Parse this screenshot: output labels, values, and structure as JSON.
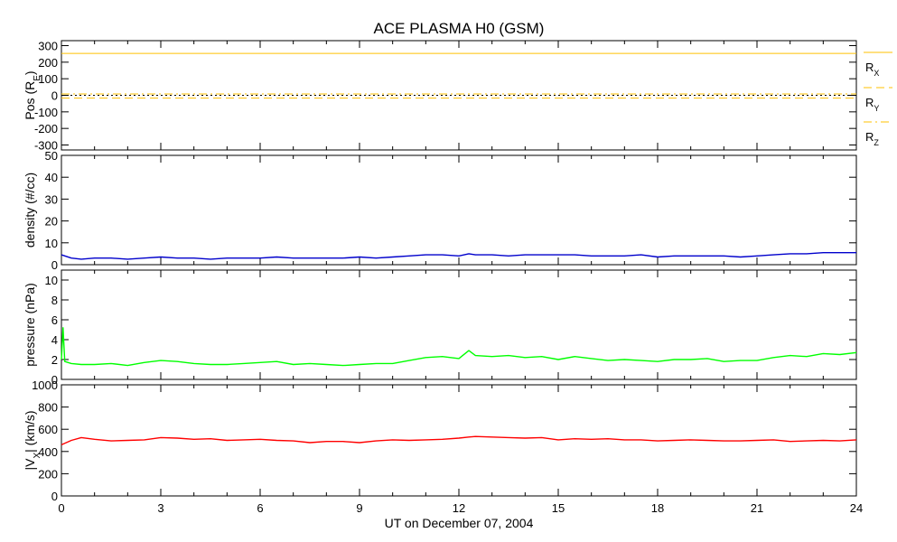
{
  "title": "ACE PLASMA H0 (GSM)",
  "xlabel": "UT on December 07, 2004",
  "x_ticks": [
    "0",
    "3",
    "6",
    "9",
    "12",
    "15",
    "18",
    "21",
    "24"
  ],
  "chart_data": [
    {
      "type": "line",
      "ylabel": "Pos (R_E)",
      "ylim": [
        -330,
        330
      ],
      "y_ticks": [
        300,
        200,
        100,
        0,
        -100,
        -200,
        -300
      ],
      "xlim": [
        0,
        24
      ],
      "grid": false,
      "legend_position": "right",
      "series": [
        {
          "name": "R_X",
          "color": "#ffc000",
          "dash": "solid",
          "x": [
            0,
            24
          ],
          "y": [
            253,
            253
          ]
        },
        {
          "name": "R_Y",
          "color": "#ffc000",
          "dash": "dashed",
          "x": [
            0,
            24
          ],
          "y": [
            -17,
            -17
          ]
        },
        {
          "name": "R_Z",
          "color": "#ffc000",
          "dash": "dashdot",
          "x": [
            0,
            24
          ],
          "y": [
            8,
            8
          ]
        }
      ],
      "zero_line": {
        "y": 0,
        "color": "#000000",
        "dash": "dotted"
      }
    },
    {
      "type": "line",
      "ylabel": "density (#/cc)",
      "ylim": [
        0,
        50
      ],
      "y_ticks": [
        50,
        40,
        30,
        20,
        10,
        0
      ],
      "xlim": [
        0,
        24
      ],
      "series": [
        {
          "name": "",
          "color": "#0000cc",
          "x": [
            0,
            0.3,
            0.6,
            1,
            1.5,
            2,
            2.5,
            3,
            3.5,
            4,
            4.5,
            5,
            5.5,
            6,
            6.5,
            7,
            7.5,
            8,
            8.5,
            9,
            9.5,
            10,
            10.5,
            11,
            11.5,
            12,
            12.3,
            12.5,
            13,
            13.5,
            14,
            14.5,
            15,
            15.5,
            16,
            16.5,
            17,
            17.5,
            18,
            18.5,
            19,
            19.5,
            20,
            20.5,
            21,
            21.5,
            22,
            22.5,
            23,
            23.5,
            24
          ],
          "y": [
            4.5,
            3.0,
            2.5,
            3.0,
            3.0,
            2.5,
            3.0,
            3.5,
            3.0,
            3.0,
            2.5,
            3.0,
            3.0,
            3.0,
            3.5,
            3.0,
            3.0,
            3.0,
            3.0,
            3.5,
            3.0,
            3.5,
            4.0,
            4.5,
            4.5,
            4.0,
            5.0,
            4.5,
            4.5,
            4.0,
            4.5,
            4.5,
            4.5,
            4.5,
            4.0,
            4.0,
            4.0,
            4.5,
            3.5,
            4.0,
            4.0,
            4.0,
            4.0,
            3.5,
            4.0,
            4.5,
            5.0,
            5.0,
            5.5,
            5.5,
            5.5
          ]
        }
      ]
    },
    {
      "type": "line",
      "ylabel": "pressure (nPa)",
      "ylim": [
        0,
        11
      ],
      "y_ticks": [
        10,
        8,
        6,
        4,
        2,
        0
      ],
      "xlim": [
        0,
        24
      ],
      "series": [
        {
          "name": "",
          "color": "#00ff00",
          "x": [
            0,
            0.05,
            0.1,
            0.3,
            0.6,
            1,
            1.5,
            2,
            2.5,
            3,
            3.5,
            4,
            4.5,
            5,
            5.5,
            6,
            6.5,
            7,
            7.5,
            8,
            8.5,
            9,
            9.5,
            10,
            10.5,
            11,
            11.5,
            12,
            12.3,
            12.5,
            13,
            13.5,
            14,
            14.5,
            15,
            15.5,
            16,
            16.5,
            17,
            17.5,
            18,
            18.5,
            19,
            19.5,
            20,
            20.5,
            21,
            21.5,
            22,
            22.5,
            23,
            23.5,
            24
          ],
          "y": [
            2.0,
            5.2,
            1.8,
            1.6,
            1.5,
            1.5,
            1.6,
            1.4,
            1.7,
            1.9,
            1.8,
            1.6,
            1.5,
            1.5,
            1.6,
            1.7,
            1.8,
            1.5,
            1.6,
            1.5,
            1.4,
            1.5,
            1.6,
            1.6,
            1.9,
            2.2,
            2.3,
            2.1,
            2.9,
            2.4,
            2.3,
            2.4,
            2.2,
            2.3,
            2.0,
            2.3,
            2.1,
            1.9,
            2.0,
            1.9,
            1.8,
            2.0,
            2.0,
            2.1,
            1.8,
            1.9,
            1.9,
            2.2,
            2.4,
            2.3,
            2.6,
            2.5,
            2.7
          ]
        }
      ]
    },
    {
      "type": "line",
      "ylabel": "|V_X| (km/s)",
      "ylim": [
        0,
        1000
      ],
      "y_ticks": [
        1000,
        800,
        600,
        400,
        200,
        0
      ],
      "xlim": [
        0,
        24
      ],
      "series": [
        {
          "name": "",
          "color": "#ff0000",
          "x": [
            0,
            0.3,
            0.6,
            1,
            1.5,
            2,
            2.5,
            3,
            3.5,
            4,
            4.5,
            5,
            5.5,
            6,
            6.5,
            7,
            7.5,
            8,
            8.5,
            9,
            9.5,
            10,
            10.5,
            11,
            11.5,
            12,
            12.3,
            12.5,
            13,
            13.5,
            14,
            14.5,
            15,
            15.5,
            16,
            16.5,
            17,
            17.5,
            18,
            18.5,
            19,
            19.5,
            20,
            20.5,
            21,
            21.5,
            22,
            22.5,
            23,
            23.5,
            24
          ],
          "y": [
            460,
            500,
            525,
            510,
            495,
            500,
            505,
            525,
            520,
            510,
            515,
            500,
            505,
            510,
            500,
            495,
            480,
            490,
            490,
            480,
            495,
            505,
            500,
            505,
            510,
            520,
            530,
            535,
            530,
            525,
            520,
            525,
            505,
            515,
            510,
            515,
            505,
            505,
            495,
            500,
            505,
            500,
            495,
            495,
            500,
            505,
            490,
            495,
            500,
            495,
            505
          ]
        }
      ]
    }
  ]
}
